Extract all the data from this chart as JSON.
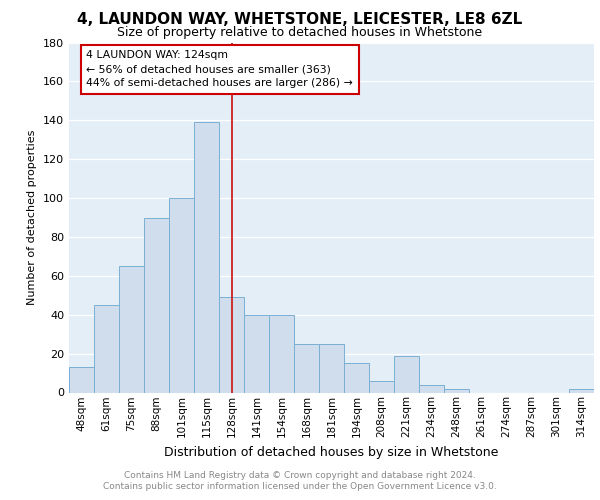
{
  "title_line1": "4, LAUNDON WAY, WHETSTONE, LEICESTER, LE8 6ZL",
  "title_line2": "Size of property relative to detached houses in Whetstone",
  "xlabel": "Distribution of detached houses by size in Whetstone",
  "ylabel": "Number of detached properties",
  "categories": [
    "48sqm",
    "61sqm",
    "75sqm",
    "88sqm",
    "101sqm",
    "115sqm",
    "128sqm",
    "141sqm",
    "154sqm",
    "168sqm",
    "181sqm",
    "194sqm",
    "208sqm",
    "221sqm",
    "234sqm",
    "248sqm",
    "261sqm",
    "274sqm",
    "287sqm",
    "301sqm",
    "314sqm"
  ],
  "values": [
    13,
    45,
    65,
    90,
    100,
    139,
    49,
    40,
    40,
    25,
    25,
    15,
    6,
    19,
    4,
    2,
    0,
    0,
    0,
    0,
    2
  ],
  "bar_color": "#cfdded",
  "bar_edge_color": "#7aafd4",
  "highlight_line_color": "#cc2222",
  "annotation_line1": "4 LAUNDON WAY: 124sqm",
  "annotation_line2": "← 56% of detached houses are smaller (363)",
  "annotation_line3": "44% of semi-detached houses are larger (286) →",
  "annotation_box_color": "#ffffff",
  "annotation_box_edge": "#cc0000",
  "ylim": [
    0,
    180
  ],
  "yticks": [
    0,
    20,
    40,
    60,
    80,
    100,
    120,
    140,
    160,
    180
  ],
  "footer_line1": "Contains HM Land Registry data © Crown copyright and database right 2024.",
  "footer_line2": "Contains public sector information licensed under the Open Government Licence v3.0.",
  "bg_color": "#ffffff",
  "plot_bg_color": "#e4eef7",
  "grid_color": "#ffffff",
  "title1_fontsize": 11,
  "title2_fontsize": 9,
  "ylabel_fontsize": 8,
  "xlabel_fontsize": 9,
  "tick_fontsize": 7.5,
  "footer_fontsize": 6.5
}
